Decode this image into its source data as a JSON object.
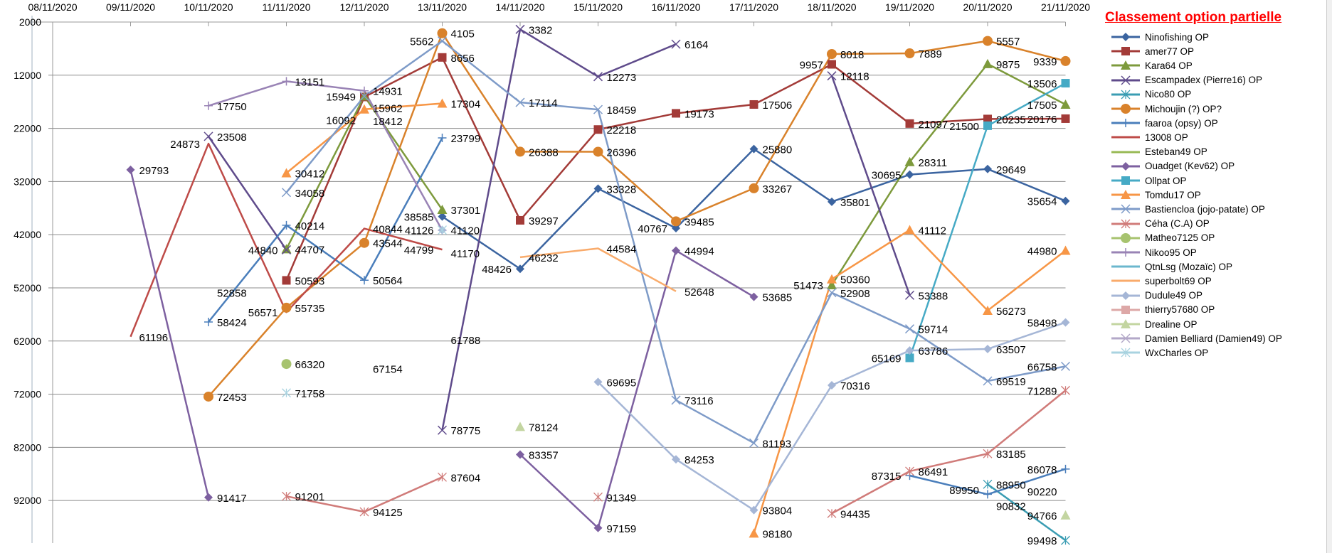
{
  "chart_data": {
    "type": "line",
    "title": "Classement option partielle",
    "xlabel": "",
    "ylabel": "",
    "y_inverted": true,
    "ylim": [
      2000,
      100000
    ],
    "y_ticks": [
      2000,
      12000,
      22000,
      32000,
      42000,
      52000,
      62000,
      72000,
      82000,
      92000
    ],
    "grid": "horizontal",
    "legend_position": "right",
    "categories": [
      "08/11/2020",
      "09/11/2020",
      "10/11/2020",
      "11/11/2020",
      "12/11/2020",
      "13/11/2020",
      "14/11/2020",
      "15/11/2020",
      "16/11/2020",
      "17/11/2020",
      "18/11/2020",
      "19/11/2020",
      "20/11/2020",
      "21/11/2020"
    ],
    "series": [
      {
        "name": "Ninofishing OP",
        "color": "#3B64A0",
        "marker": "diamond",
        "values": [
          null,
          null,
          null,
          null,
          null,
          38585,
          48426,
          33328,
          40767,
          25880,
          35801,
          30695,
          29649,
          35654
        ]
      },
      {
        "name": "amer77 OP",
        "color": "#A33B38",
        "marker": "square",
        "values": [
          null,
          null,
          null,
          50593,
          16092,
          8656,
          39297,
          22218,
          19173,
          17506,
          9957,
          21097,
          20235,
          20176
        ]
      },
      {
        "name": "Kara64  OP",
        "color": "#7D9A3C",
        "marker": "triangle",
        "values": [
          null,
          null,
          null,
          44707,
          15949,
          37301,
          null,
          null,
          null,
          null,
          51473,
          28311,
          9875,
          17505
        ]
      },
      {
        "name": "Escampadex (Pierre16) OP",
        "color": "#5F4B8B",
        "marker": "x",
        "values": [
          null,
          null,
          23508,
          44840,
          null,
          78775,
          3382,
          12273,
          6164,
          null,
          12118,
          53388,
          null,
          null
        ]
      },
      {
        "name": "Nico80 OP",
        "color": "#3A9DB3",
        "marker": "asterisk",
        "values": [
          null,
          null,
          null,
          null,
          null,
          null,
          null,
          null,
          null,
          null,
          null,
          null,
          88950,
          99498
        ]
      },
      {
        "name": "Michoujin (?) OP?",
        "color": "#D9822B",
        "marker": "circle",
        "values": [
          null,
          null,
          72453,
          55735,
          43544,
          4105,
          26388,
          26396,
          39485,
          33267,
          8018,
          7889,
          5557,
          9339
        ]
      },
      {
        "name": "faaroa (opsy) OP",
        "color": "#4A7EBB",
        "marker": "plus",
        "values": [
          null,
          null,
          58424,
          40214,
          50564,
          23799,
          null,
          null,
          null,
          null,
          null,
          87315,
          90832,
          86078
        ]
      },
      {
        "name": "13008 OP",
        "color": "#BE4B48",
        "marker": "none",
        "values": [
          null,
          61196,
          24873,
          56571,
          40844,
          44799,
          null,
          null,
          null,
          null,
          null,
          null,
          null,
          null
        ]
      },
      {
        "name": "Esteban49 OP",
        "color": "#98B954",
        "marker": "none",
        "values": [
          null,
          null,
          null,
          null,
          null,
          null,
          null,
          null,
          null,
          null,
          null,
          null,
          89950,
          null
        ]
      },
      {
        "name": "Ouadget (Kev62) OP",
        "color": "#7D60A0",
        "marker": "diamond",
        "values": [
          null,
          29793,
          91417,
          null,
          null,
          null,
          83357,
          97159,
          44994,
          53685,
          null,
          null,
          null,
          null
        ]
      },
      {
        "name": "Ollpat OP",
        "color": "#46AAC5",
        "marker": "square",
        "values": [
          null,
          null,
          null,
          null,
          null,
          null,
          null,
          null,
          null,
          null,
          null,
          65169,
          21500,
          13506
        ]
      },
      {
        "name": "Tomdu17 OP",
        "color": "#F79646",
        "marker": "triangle",
        "values": [
          null,
          null,
          null,
          30412,
          18412,
          17304,
          null,
          null,
          null,
          98180,
          50360,
          41112,
          56273,
          44980
        ]
      },
      {
        "name": "Bastiencloa (jojo-patate) OP",
        "color": "#7E9BC8",
        "marker": "x",
        "values": [
          null,
          null,
          null,
          34058,
          15962,
          5562,
          17114,
          18459,
          73116,
          81193,
          52908,
          59714,
          69519,
          66758
        ]
      },
      {
        "name": "Céha (C.A) OP",
        "color": "#D07B79",
        "marker": "asterisk",
        "values": [
          null,
          null,
          null,
          91201,
          94125,
          87604,
          null,
          91349,
          null,
          null,
          94435,
          86491,
          83185,
          71289
        ]
      },
      {
        "name": "Matheo7125 OP",
        "color": "#A7C36F",
        "marker": "circle",
        "values": [
          null,
          null,
          null,
          66320,
          null,
          null,
          null,
          null,
          null,
          null,
          null,
          null,
          null,
          null
        ]
      },
      {
        "name": "Nikoo95 OP",
        "color": "#9983B5",
        "marker": "plus",
        "values": [
          null,
          null,
          17750,
          13151,
          14931,
          41170,
          null,
          null,
          null,
          null,
          null,
          null,
          null,
          null
        ]
      },
      {
        "name": "QtnLsg (Mozaïc) OP",
        "color": "#6BB7CE",
        "marker": "none",
        "values": [
          null,
          null,
          null,
          null,
          null,
          61788,
          null,
          null,
          null,
          null,
          null,
          null,
          null,
          90220
        ]
      },
      {
        "name": "superbolt69 OP",
        "color": "#F9AB6B",
        "marker": "none",
        "values": [
          null,
          null,
          52858,
          null,
          67154,
          null,
          46232,
          44584,
          52648,
          null,
          null,
          null,
          null,
          null
        ]
      },
      {
        "name": "Dudule49 OP",
        "color": "#A5B6D6",
        "marker": "diamond",
        "values": [
          null,
          null,
          null,
          null,
          null,
          41120,
          null,
          69695,
          84253,
          93804,
          70316,
          63786,
          63507,
          58498
        ]
      },
      {
        "name": "thierry57680 OP",
        "color": "#DDA8A7",
        "marker": "square",
        "values": [
          null,
          null,
          null,
          null,
          null,
          null,
          null,
          null,
          null,
          null,
          null,
          null,
          null,
          null
        ]
      },
      {
        "name": "Drealine OP",
        "color": "#C3D5A1",
        "marker": "triangle",
        "values": [
          null,
          null,
          null,
          null,
          null,
          null,
          78124,
          null,
          null,
          null,
          null,
          null,
          null,
          94766
        ]
      },
      {
        "name": "Damien Belliard (Damien49) OP",
        "color": "#B3A8C8",
        "marker": "x",
        "values": [
          null,
          null,
          null,
          null,
          null,
          null,
          null,
          null,
          null,
          null,
          null,
          null,
          null,
          null
        ]
      },
      {
        "name": "WxCharles OP",
        "color": "#A9D3E0",
        "marker": "asterisk",
        "values": [
          null,
          null,
          null,
          71758,
          null,
          41126,
          null,
          null,
          null,
          null,
          null,
          null,
          null,
          null
        ]
      }
    ]
  }
}
